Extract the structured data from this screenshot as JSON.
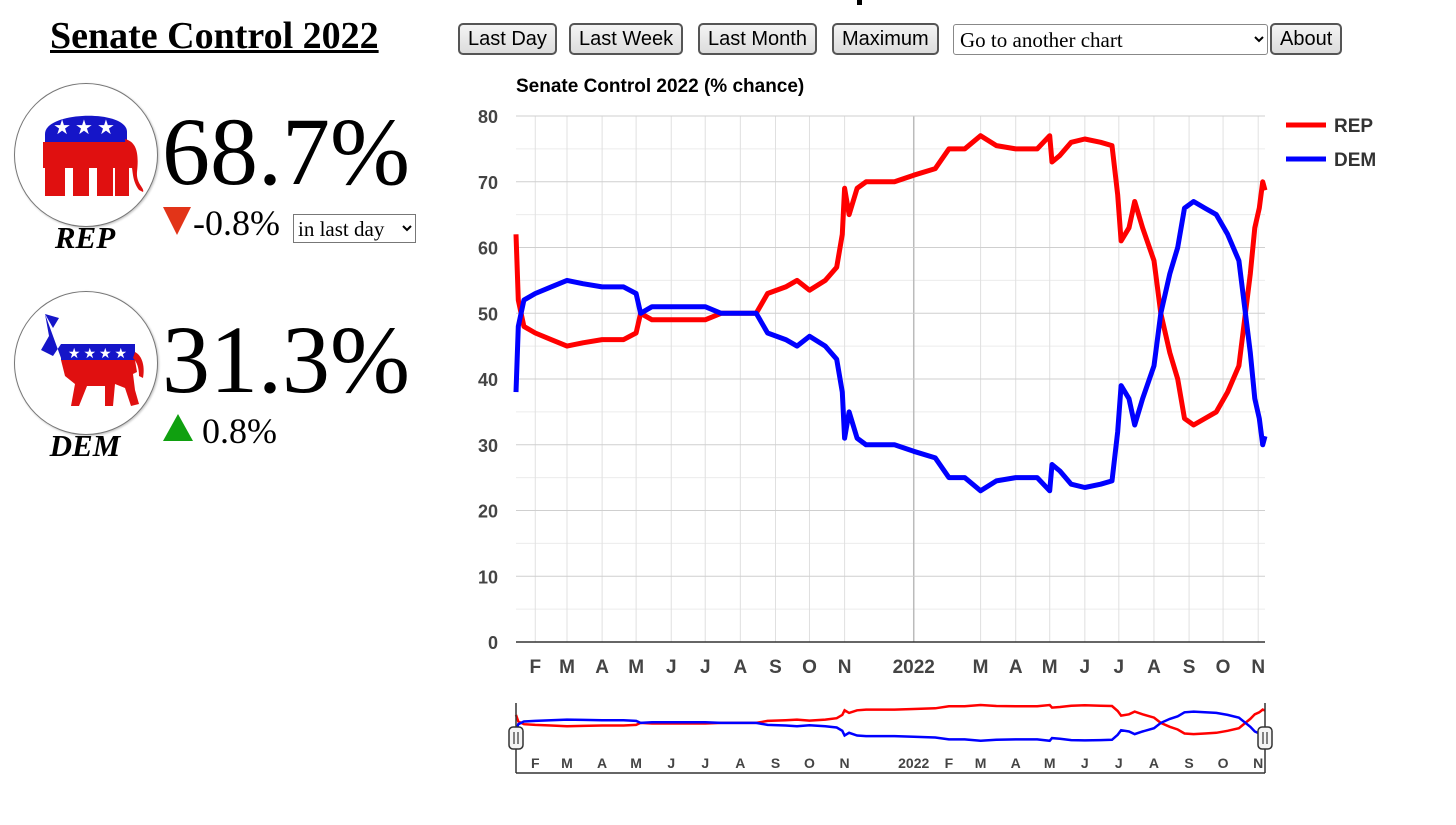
{
  "header": {
    "title": "Senate Control 2022",
    "buttons": {
      "last_day": "Last Day",
      "last_week": "Last Week",
      "last_month": "Last Month",
      "maximum": "Maximum",
      "about": "About"
    },
    "chart_select": "Go to another chart"
  },
  "parties": {
    "rep": {
      "name": "REP",
      "pct": "68.7%",
      "change": "-0.8%",
      "direction": "down",
      "period": "in last day",
      "color": "#ff0000",
      "icon": "elephant-icon"
    },
    "dem": {
      "name": "DEM",
      "pct": "31.3%",
      "change": "0.8%",
      "direction": "up",
      "color": "#0000ff",
      "icon": "donkey-icon"
    }
  },
  "colors": {
    "rep": "#ff0000",
    "dem": "#0000ff",
    "down_arrow": "#e23418",
    "up_arrow": "#10a010"
  },
  "chart_data": {
    "type": "line",
    "title": "Senate Control 2022 (% chance)",
    "ylim": [
      0,
      80
    ],
    "yticks": [
      0,
      10,
      20,
      30,
      40,
      50,
      60,
      70,
      80
    ],
    "xlim": [
      "2021-01-15",
      "2022-11-07"
    ],
    "xticks": [
      {
        "label": "F",
        "date": "2021-02-01"
      },
      {
        "label": "M",
        "date": "2021-03-01"
      },
      {
        "label": "A",
        "date": "2021-04-01"
      },
      {
        "label": "M",
        "date": "2021-05-01"
      },
      {
        "label": "J",
        "date": "2021-06-01"
      },
      {
        "label": "J",
        "date": "2021-07-01"
      },
      {
        "label": "A",
        "date": "2021-08-01"
      },
      {
        "label": "S",
        "date": "2021-09-01"
      },
      {
        "label": "O",
        "date": "2021-10-01"
      },
      {
        "label": "N",
        "date": "2021-11-01"
      },
      {
        "label": "2022",
        "date": "2022-01-01"
      },
      {
        "label": "M",
        "date": "2022-03-01"
      },
      {
        "label": "A",
        "date": "2022-04-01"
      },
      {
        "label": "M",
        "date": "2022-05-01"
      },
      {
        "label": "J",
        "date": "2022-06-01"
      },
      {
        "label": "J",
        "date": "2022-07-01"
      },
      {
        "label": "A",
        "date": "2022-08-01"
      },
      {
        "label": "S",
        "date": "2022-09-01"
      },
      {
        "label": "O",
        "date": "2022-10-01"
      },
      {
        "label": "N",
        "date": "2022-11-01"
      }
    ],
    "nav_xticks": [
      {
        "label": "F",
        "date": "2021-02-01"
      },
      {
        "label": "M",
        "date": "2021-03-01"
      },
      {
        "label": "A",
        "date": "2021-04-01"
      },
      {
        "label": "M",
        "date": "2021-05-01"
      },
      {
        "label": "J",
        "date": "2021-06-01"
      },
      {
        "label": "J",
        "date": "2021-07-01"
      },
      {
        "label": "A",
        "date": "2021-08-01"
      },
      {
        "label": "S",
        "date": "2021-09-01"
      },
      {
        "label": "O",
        "date": "2021-10-01"
      },
      {
        "label": "N",
        "date": "2021-11-01"
      },
      {
        "label": "2022",
        "date": "2022-01-01"
      },
      {
        "label": "F",
        "date": "2022-02-01"
      },
      {
        "label": "M",
        "date": "2022-03-01"
      },
      {
        "label": "A",
        "date": "2022-04-01"
      },
      {
        "label": "M",
        "date": "2022-05-01"
      },
      {
        "label": "J",
        "date": "2022-06-01"
      },
      {
        "label": "J",
        "date": "2022-07-01"
      },
      {
        "label": "A",
        "date": "2022-08-01"
      },
      {
        "label": "S",
        "date": "2022-09-01"
      },
      {
        "label": "O",
        "date": "2022-10-01"
      },
      {
        "label": "N",
        "date": "2022-11-01"
      }
    ],
    "grid": true,
    "legend": "top-right",
    "series": [
      {
        "name": "REP",
        "color": "#ff0000",
        "points": [
          [
            "2021-01-15",
            62
          ],
          [
            "2021-01-17",
            52
          ],
          [
            "2021-01-22",
            48
          ],
          [
            "2021-02-01",
            47
          ],
          [
            "2021-02-15",
            46
          ],
          [
            "2021-03-01",
            45
          ],
          [
            "2021-03-15",
            45.5
          ],
          [
            "2021-04-01",
            46
          ],
          [
            "2021-04-20",
            46
          ],
          [
            "2021-05-01",
            47
          ],
          [
            "2021-05-05",
            50
          ],
          [
            "2021-05-15",
            49
          ],
          [
            "2021-06-01",
            49
          ],
          [
            "2021-06-15",
            49
          ],
          [
            "2021-07-01",
            49
          ],
          [
            "2021-07-15",
            50
          ],
          [
            "2021-08-01",
            50
          ],
          [
            "2021-08-15",
            50
          ],
          [
            "2021-08-25",
            53
          ],
          [
            "2021-09-10",
            54
          ],
          [
            "2021-09-20",
            55
          ],
          [
            "2021-10-01",
            53.5
          ],
          [
            "2021-10-15",
            55
          ],
          [
            "2021-10-25",
            57
          ],
          [
            "2021-10-30",
            62
          ],
          [
            "2021-11-01",
            69
          ],
          [
            "2021-11-05",
            65
          ],
          [
            "2021-11-12",
            69
          ],
          [
            "2021-11-20",
            70
          ],
          [
            "2021-12-15",
            70
          ],
          [
            "2022-01-01",
            71
          ],
          [
            "2022-01-20",
            72
          ],
          [
            "2022-02-01",
            75
          ],
          [
            "2022-02-15",
            75
          ],
          [
            "2022-03-01",
            77
          ],
          [
            "2022-03-15",
            75.5
          ],
          [
            "2022-04-01",
            75
          ],
          [
            "2022-04-20",
            75
          ],
          [
            "2022-05-01",
            77
          ],
          [
            "2022-05-03",
            73
          ],
          [
            "2022-05-10",
            74
          ],
          [
            "2022-05-20",
            76
          ],
          [
            "2022-06-01",
            76.5
          ],
          [
            "2022-06-15",
            76
          ],
          [
            "2022-06-25",
            75.5
          ],
          [
            "2022-06-30",
            68
          ],
          [
            "2022-07-03",
            61
          ],
          [
            "2022-07-10",
            63
          ],
          [
            "2022-07-15",
            67
          ],
          [
            "2022-07-22",
            63
          ],
          [
            "2022-08-01",
            58
          ],
          [
            "2022-08-07",
            50
          ],
          [
            "2022-08-15",
            44
          ],
          [
            "2022-08-22",
            40
          ],
          [
            "2022-08-28",
            34
          ],
          [
            "2022-09-05",
            33
          ],
          [
            "2022-09-15",
            34
          ],
          [
            "2022-09-25",
            35
          ],
          [
            "2022-10-05",
            38
          ],
          [
            "2022-10-15",
            42
          ],
          [
            "2022-10-20",
            49
          ],
          [
            "2022-10-25",
            56
          ],
          [
            "2022-10-29",
            63
          ],
          [
            "2022-11-02",
            66
          ],
          [
            "2022-11-05",
            70
          ],
          [
            "2022-11-07",
            68.7
          ]
        ]
      },
      {
        "name": "DEM",
        "color": "#0000ff",
        "points": [
          [
            "2021-01-15",
            38
          ],
          [
            "2021-01-17",
            48
          ],
          [
            "2021-01-22",
            52
          ],
          [
            "2021-02-01",
            53
          ],
          [
            "2021-02-15",
            54
          ],
          [
            "2021-03-01",
            55
          ],
          [
            "2021-03-15",
            54.5
          ],
          [
            "2021-04-01",
            54
          ],
          [
            "2021-04-20",
            54
          ],
          [
            "2021-05-01",
            53
          ],
          [
            "2021-05-05",
            50
          ],
          [
            "2021-05-15",
            51
          ],
          [
            "2021-06-01",
            51
          ],
          [
            "2021-06-15",
            51
          ],
          [
            "2021-07-01",
            51
          ],
          [
            "2021-07-15",
            50
          ],
          [
            "2021-08-01",
            50
          ],
          [
            "2021-08-15",
            50
          ],
          [
            "2021-08-25",
            47
          ],
          [
            "2021-09-10",
            46
          ],
          [
            "2021-09-20",
            45
          ],
          [
            "2021-10-01",
            46.5
          ],
          [
            "2021-10-15",
            45
          ],
          [
            "2021-10-25",
            43
          ],
          [
            "2021-10-30",
            38
          ],
          [
            "2021-11-01",
            31
          ],
          [
            "2021-11-05",
            35
          ],
          [
            "2021-11-12",
            31
          ],
          [
            "2021-11-20",
            30
          ],
          [
            "2021-12-15",
            30
          ],
          [
            "2022-01-01",
            29
          ],
          [
            "2022-01-20",
            28
          ],
          [
            "2022-02-01",
            25
          ],
          [
            "2022-02-15",
            25
          ],
          [
            "2022-03-01",
            23
          ],
          [
            "2022-03-15",
            24.5
          ],
          [
            "2022-04-01",
            25
          ],
          [
            "2022-04-20",
            25
          ],
          [
            "2022-05-01",
            23
          ],
          [
            "2022-05-03",
            27
          ],
          [
            "2022-05-10",
            26
          ],
          [
            "2022-05-20",
            24
          ],
          [
            "2022-06-01",
            23.5
          ],
          [
            "2022-06-15",
            24
          ],
          [
            "2022-06-25",
            24.5
          ],
          [
            "2022-06-30",
            32
          ],
          [
            "2022-07-03",
            39
          ],
          [
            "2022-07-10",
            37
          ],
          [
            "2022-07-15",
            33
          ],
          [
            "2022-07-22",
            37
          ],
          [
            "2022-08-01",
            42
          ],
          [
            "2022-08-07",
            50
          ],
          [
            "2022-08-15",
            56
          ],
          [
            "2022-08-22",
            60
          ],
          [
            "2022-08-28",
            66
          ],
          [
            "2022-09-05",
            67
          ],
          [
            "2022-09-15",
            66
          ],
          [
            "2022-09-25",
            65
          ],
          [
            "2022-10-05",
            62
          ],
          [
            "2022-10-15",
            58
          ],
          [
            "2022-10-20",
            51
          ],
          [
            "2022-10-25",
            44
          ],
          [
            "2022-10-29",
            37
          ],
          [
            "2022-11-02",
            34
          ],
          [
            "2022-11-05",
            30
          ],
          [
            "2022-11-07",
            31.3
          ]
        ]
      }
    ]
  }
}
